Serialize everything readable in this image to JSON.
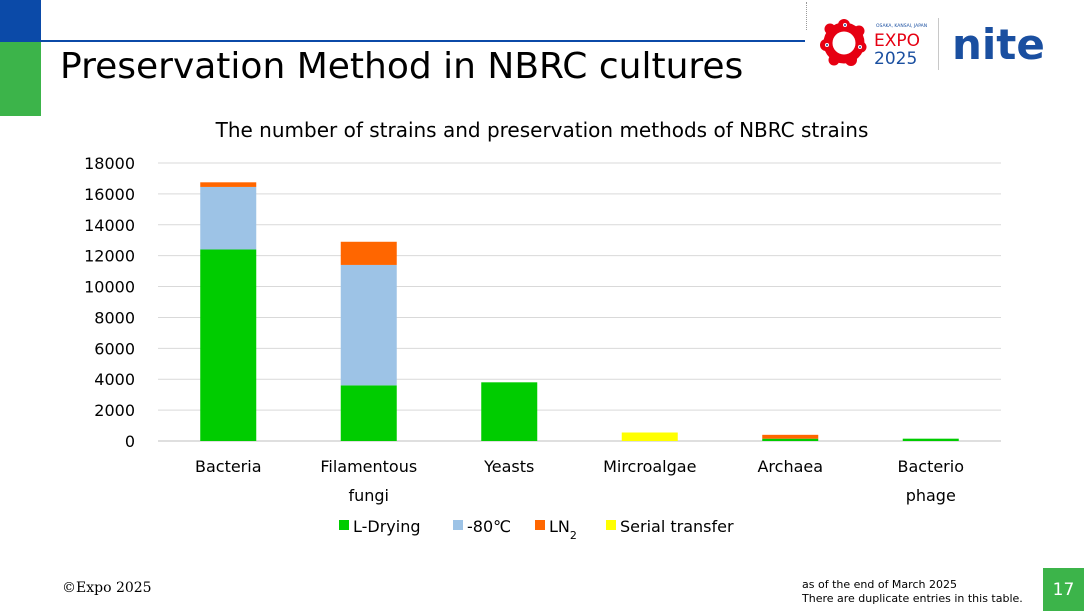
{
  "slide": {
    "title": "Preservation Method in NBRC cultures",
    "copyright": "©Expo 2025",
    "footnote_line1": "as of the end of March 2025",
    "footnote_line2": "There are duplicate entries in this table.",
    "page_number": "17",
    "logo_expo_small": "OSAKA, KANSAI, JAPAN",
    "logo_expo_word": "EXPO",
    "logo_expo_year": "2025",
    "logo_nite": "nite"
  },
  "chart_data": {
    "type": "bar",
    "stacked": true,
    "title": "The number of strains and preservation methods of NBRC strains",
    "categories": [
      [
        "Bacteria"
      ],
      [
        "Filamentous",
        "fungi"
      ],
      [
        "Yeasts"
      ],
      [
        "Mircroalgae"
      ],
      [
        "Archaea"
      ],
      [
        "Bacterio",
        "phage"
      ]
    ],
    "series": [
      {
        "name": "L-Drying",
        "color": "#00cc00",
        "values": [
          12400,
          3600,
          3800,
          0,
          150,
          150
        ]
      },
      {
        "name": "-80℃",
        "color": "#9dc3e6",
        "values": [
          4050,
          7800,
          0,
          0,
          0,
          0
        ]
      },
      {
        "name": "LN2",
        "color": "#ff6600",
        "values": [
          300,
          1500,
          0,
          0,
          250,
          0
        ]
      },
      {
        "name": "Serial transfer",
        "color": "#ffff00",
        "values": [
          0,
          0,
          0,
          550,
          0,
          0
        ]
      }
    ],
    "ylim": [
      0,
      18000
    ],
    "yticks": [
      0,
      2000,
      4000,
      6000,
      8000,
      10000,
      12000,
      14000,
      16000,
      18000
    ],
    "grid": true,
    "legend": "bottom"
  }
}
